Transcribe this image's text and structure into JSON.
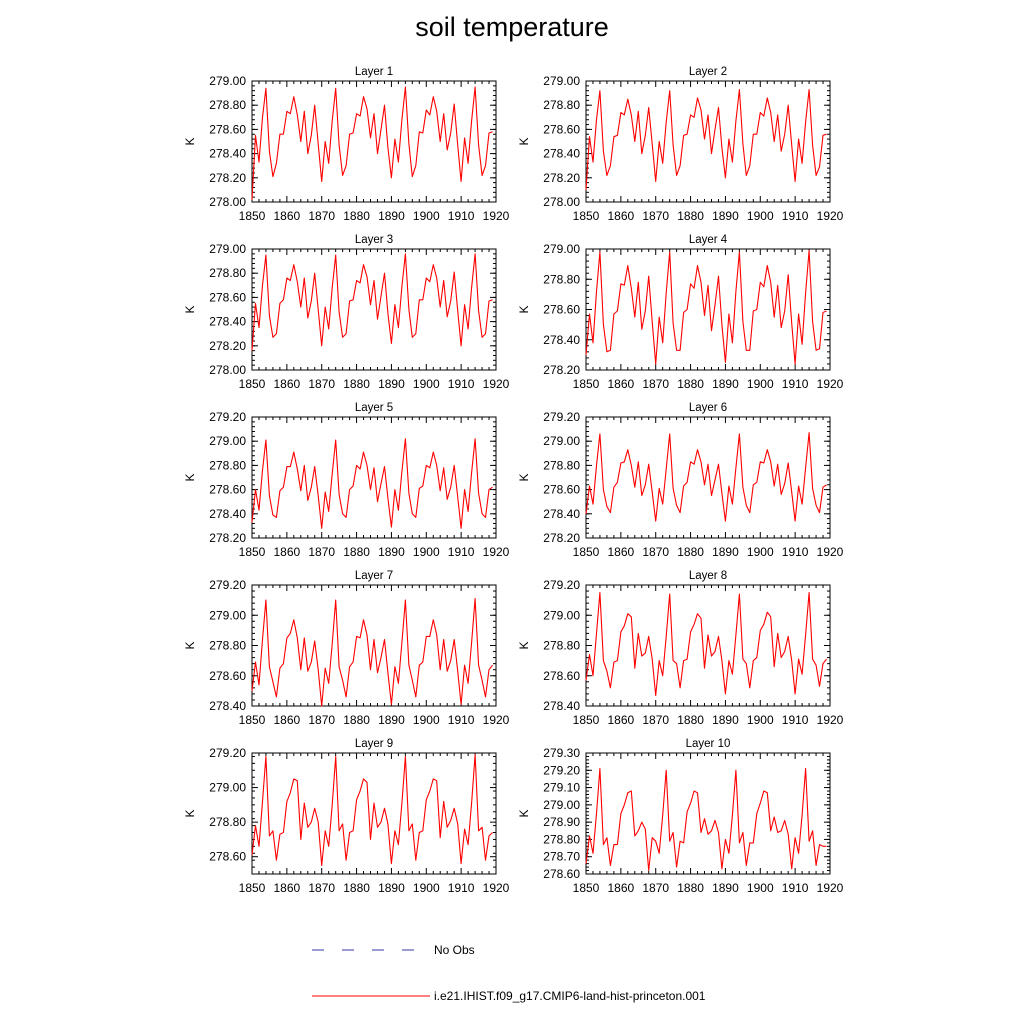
{
  "title": "soil temperature",
  "legend": [
    {
      "label": "No Obs",
      "color": "#3a3aa8",
      "dash": "12,18"
    },
    {
      "label": "i.e21.IHIST.f09_g17.CMIP6-land-hist-princeton.001",
      "color": "#ff0000",
      "dash": ""
    }
  ],
  "colors": {
    "series": "#ff0000",
    "axis": "#000000"
  },
  "chart_data": [
    {
      "type": "line",
      "title": "Layer 1",
      "ylabel": "K",
      "xlim": [
        1850,
        1920
      ],
      "ylim": [
        278.0,
        279.0
      ],
      "xticks": [
        1850,
        1860,
        1870,
        1880,
        1890,
        1900,
        1910,
        1920
      ],
      "yticks": [
        "278.00",
        "278.20",
        "278.40",
        "278.60",
        "278.80",
        "279.00"
      ],
      "x_start": 1850,
      "series": [
        {
          "values": [
            278.02,
            278.55,
            278.33,
            278.7,
            278.94,
            278.42,
            278.21,
            278.32,
            278.56,
            278.56,
            278.75,
            278.73,
            278.87,
            278.72,
            278.5,
            278.75,
            278.4,
            278.55,
            278.8,
            278.48,
            278.17,
            278.5,
            278.32,
            278.67,
            278.94,
            278.47,
            278.22,
            278.3,
            278.56,
            278.57,
            278.73,
            278.71,
            278.87,
            278.77,
            278.53,
            278.73,
            278.4,
            278.6,
            278.8,
            278.45,
            278.2,
            278.52,
            278.33,
            278.68,
            278.95,
            278.48,
            278.21,
            278.3,
            278.58,
            278.57,
            278.76,
            278.72,
            278.87,
            278.75,
            278.5,
            278.73,
            278.43,
            278.57,
            278.81,
            278.47,
            278.17,
            278.53,
            278.32,
            278.67,
            278.95,
            278.47,
            278.22,
            278.3,
            278.57,
            278.58
          ]
        }
      ]
    },
    {
      "type": "line",
      "title": "Layer 2",
      "ylabel": "K",
      "xlim": [
        1850,
        1920
      ],
      "ylim": [
        278.0,
        279.0
      ],
      "xticks": [
        1850,
        1860,
        1870,
        1880,
        1890,
        1900,
        1910,
        1920
      ],
      "yticks": [
        "278.00",
        "278.20",
        "278.40",
        "278.60",
        "278.80",
        "279.00"
      ],
      "x_start": 1850,
      "series": [
        {
          "values": [
            278.1,
            278.54,
            278.33,
            278.68,
            278.92,
            278.42,
            278.22,
            278.3,
            278.54,
            278.55,
            278.74,
            278.72,
            278.85,
            278.72,
            278.5,
            278.75,
            278.4,
            278.55,
            278.78,
            278.48,
            278.17,
            278.5,
            278.32,
            278.66,
            278.92,
            278.47,
            278.22,
            278.3,
            278.55,
            278.56,
            278.72,
            278.7,
            278.86,
            278.76,
            278.52,
            278.72,
            278.4,
            278.6,
            278.78,
            278.45,
            278.2,
            278.52,
            278.33,
            278.67,
            278.93,
            278.48,
            278.22,
            278.3,
            278.56,
            278.56,
            278.74,
            278.71,
            278.86,
            278.74,
            278.5,
            278.72,
            278.42,
            278.56,
            278.8,
            278.47,
            278.17,
            278.52,
            278.32,
            278.66,
            278.93,
            278.47,
            278.22,
            278.29,
            278.55,
            278.56
          ]
        }
      ]
    },
    {
      "type": "line",
      "title": "Layer 3",
      "ylabel": "K",
      "xlim": [
        1850,
        1920
      ],
      "ylim": [
        278.0,
        279.0
      ],
      "xticks": [
        1850,
        1860,
        1870,
        1880,
        1890,
        1900,
        1910,
        1920
      ],
      "yticks": [
        "278.00",
        "278.20",
        "278.40",
        "278.60",
        "278.80",
        "279.00"
      ],
      "x_start": 1850,
      "series": [
        {
          "values": [
            278.16,
            278.55,
            278.35,
            278.7,
            278.95,
            278.45,
            278.27,
            278.3,
            278.55,
            278.58,
            278.76,
            278.74,
            278.87,
            278.73,
            278.52,
            278.76,
            278.43,
            278.57,
            278.8,
            278.5,
            278.2,
            278.52,
            278.34,
            278.68,
            278.95,
            278.48,
            278.27,
            278.3,
            278.57,
            278.58,
            278.74,
            278.72,
            278.87,
            278.77,
            278.54,
            278.74,
            278.42,
            278.61,
            278.8,
            278.47,
            278.22,
            278.54,
            278.35,
            278.69,
            278.96,
            278.5,
            278.27,
            278.3,
            278.58,
            278.58,
            278.76,
            278.73,
            278.87,
            278.76,
            278.52,
            278.74,
            278.44,
            278.57,
            278.81,
            278.49,
            278.2,
            278.54,
            278.34,
            278.68,
            278.96,
            278.49,
            278.27,
            278.3,
            278.57,
            278.58
          ]
        }
      ]
    },
    {
      "type": "line",
      "title": "Layer 4",
      "ylabel": "K",
      "xlim": [
        1850,
        1920
      ],
      "ylim": [
        278.2,
        279.0
      ],
      "xticks": [
        1850,
        1860,
        1870,
        1880,
        1890,
        1900,
        1910,
        1920
      ],
      "yticks": [
        "278.20",
        "278.40",
        "278.60",
        "278.80",
        "279.00"
      ],
      "x_start": 1850,
      "series": [
        {
          "values": [
            278.3,
            278.57,
            278.38,
            278.72,
            278.98,
            278.5,
            278.32,
            278.33,
            278.57,
            278.59,
            278.77,
            278.76,
            278.89,
            278.74,
            278.55,
            278.78,
            278.47,
            278.59,
            278.82,
            278.52,
            278.24,
            278.55,
            278.38,
            278.71,
            278.98,
            278.51,
            278.33,
            278.33,
            278.58,
            278.6,
            278.77,
            278.74,
            278.89,
            278.78,
            278.56,
            278.76,
            278.46,
            278.63,
            278.82,
            278.5,
            278.25,
            278.57,
            278.38,
            278.72,
            278.98,
            278.52,
            278.33,
            278.33,
            278.59,
            278.6,
            278.78,
            278.75,
            278.89,
            278.78,
            278.55,
            278.76,
            278.48,
            278.59,
            278.83,
            278.51,
            278.24,
            278.57,
            278.37,
            278.71,
            278.99,
            278.52,
            278.33,
            278.34,
            278.58,
            278.59
          ]
        }
      ]
    },
    {
      "type": "line",
      "title": "Layer 5",
      "ylabel": "K",
      "xlim": [
        1850,
        1920
      ],
      "ylim": [
        278.2,
        279.2
      ],
      "xticks": [
        1850,
        1860,
        1870,
        1880,
        1890,
        1900,
        1910,
        1920
      ],
      "yticks": [
        "278.20",
        "278.40",
        "278.60",
        "278.80",
        "279.00",
        "279.20"
      ],
      "x_start": 1850,
      "series": [
        {
          "values": [
            278.33,
            278.6,
            278.43,
            278.76,
            279.01,
            278.55,
            278.39,
            278.37,
            278.59,
            278.62,
            278.79,
            278.79,
            278.91,
            278.77,
            278.59,
            278.8,
            278.51,
            278.62,
            278.79,
            278.55,
            278.28,
            278.58,
            278.42,
            278.73,
            279.01,
            278.56,
            278.4,
            278.37,
            278.6,
            278.63,
            278.8,
            278.77,
            278.91,
            278.8,
            278.6,
            278.78,
            278.5,
            278.65,
            278.79,
            278.53,
            278.29,
            278.6,
            278.43,
            278.75,
            279.02,
            278.57,
            278.4,
            278.37,
            278.61,
            278.63,
            278.8,
            278.78,
            278.91,
            278.8,
            278.59,
            278.78,
            278.52,
            278.62,
            278.8,
            278.54,
            278.28,
            278.6,
            278.42,
            278.74,
            279.02,
            278.57,
            278.4,
            278.37,
            278.6,
            278.62
          ]
        }
      ]
    },
    {
      "type": "line",
      "title": "Layer 6",
      "ylabel": "K",
      "xlim": [
        1850,
        1920
      ],
      "ylim": [
        278.2,
        279.2
      ],
      "xticks": [
        1850,
        1860,
        1870,
        1880,
        1890,
        1900,
        1910,
        1920
      ],
      "yticks": [
        "278.20",
        "278.40",
        "278.60",
        "278.80",
        "279.00",
        "279.20"
      ],
      "x_start": 1850,
      "series": [
        {
          "values": [
            278.4,
            278.63,
            278.48,
            278.8,
            279.06,
            278.6,
            278.46,
            278.41,
            278.62,
            278.66,
            278.82,
            278.83,
            278.93,
            278.8,
            278.62,
            278.83,
            278.55,
            278.64,
            278.81,
            278.58,
            278.34,
            278.61,
            278.48,
            278.77,
            279.06,
            278.61,
            278.47,
            278.41,
            278.63,
            278.66,
            278.83,
            278.81,
            278.93,
            278.83,
            278.64,
            278.81,
            278.55,
            278.68,
            278.81,
            278.57,
            278.34,
            278.63,
            278.48,
            278.78,
            279.06,
            278.62,
            278.47,
            278.41,
            278.64,
            278.66,
            278.83,
            278.82,
            278.93,
            278.83,
            278.63,
            278.81,
            278.56,
            278.65,
            278.82,
            278.58,
            278.34,
            278.63,
            278.48,
            278.78,
            279.07,
            278.61,
            278.47,
            278.41,
            278.62,
            278.64
          ]
        }
      ]
    },
    {
      "type": "line",
      "title": "Layer 7",
      "ylabel": "K",
      "xlim": [
        1850,
        1920
      ],
      "ylim": [
        278.4,
        279.2
      ],
      "xticks": [
        1850,
        1860,
        1870,
        1880,
        1890,
        1900,
        1910,
        1920
      ],
      "yticks": [
        "278.40",
        "278.60",
        "278.80",
        "279.00",
        "279.20"
      ],
      "x_start": 1850,
      "series": [
        {
          "values": [
            278.5,
            278.69,
            278.54,
            278.84,
            279.1,
            278.66,
            278.56,
            278.46,
            278.65,
            278.68,
            278.85,
            278.88,
            278.97,
            278.85,
            278.64,
            278.85,
            278.63,
            278.69,
            278.83,
            278.64,
            278.4,
            278.65,
            278.55,
            278.81,
            279.1,
            278.66,
            278.57,
            278.46,
            278.66,
            278.69,
            278.86,
            278.85,
            278.97,
            278.87,
            278.64,
            278.84,
            278.62,
            278.72,
            278.84,
            278.62,
            278.41,
            278.66,
            278.55,
            278.82,
            279.1,
            278.67,
            278.57,
            278.46,
            278.67,
            278.69,
            278.86,
            278.86,
            278.97,
            278.87,
            278.64,
            278.84,
            278.63,
            278.7,
            278.84,
            278.63,
            278.41,
            278.67,
            278.55,
            278.82,
            279.11,
            278.67,
            278.57,
            278.46,
            278.64,
            278.67
          ]
        }
      ]
    },
    {
      "type": "line",
      "title": "Layer 8",
      "ylabel": "K",
      "xlim": [
        1850,
        1920
      ],
      "ylim": [
        278.4,
        279.2
      ],
      "xticks": [
        1850,
        1860,
        1870,
        1880,
        1890,
        1900,
        1910,
        1920
      ],
      "yticks": [
        "278.40",
        "278.60",
        "278.80",
        "279.00",
        "279.20"
      ],
      "x_start": 1850,
      "series": [
        {
          "values": [
            278.57,
            278.74,
            278.6,
            278.88,
            279.15,
            278.7,
            278.63,
            278.52,
            278.69,
            278.7,
            278.89,
            278.93,
            279.01,
            278.99,
            278.65,
            278.88,
            278.73,
            278.75,
            278.86,
            278.71,
            278.47,
            278.7,
            278.6,
            278.86,
            279.14,
            278.7,
            278.68,
            278.52,
            278.7,
            278.71,
            278.89,
            278.94,
            279.01,
            278.98,
            278.65,
            278.87,
            278.73,
            278.76,
            278.86,
            278.7,
            278.48,
            278.7,
            278.61,
            278.87,
            279.14,
            278.71,
            278.68,
            278.52,
            278.7,
            278.72,
            278.9,
            278.94,
            279.02,
            278.99,
            278.66,
            278.88,
            278.72,
            278.76,
            278.86,
            278.7,
            278.48,
            278.71,
            278.61,
            278.87,
            279.15,
            278.71,
            278.67,
            278.53,
            278.68,
            278.71
          ]
        }
      ]
    },
    {
      "type": "line",
      "title": "Layer 9",
      "ylabel": "K",
      "xlim": [
        1850,
        1920
      ],
      "ylim": [
        278.5,
        279.2
      ],
      "xticks": [
        1850,
        1860,
        1870,
        1880,
        1890,
        1900,
        1910,
        1920
      ],
      "yticks": [
        "278.60",
        "278.80",
        "279.00",
        "279.20"
      ],
      "x_start": 1850,
      "series": [
        {
          "values": [
            278.61,
            278.78,
            278.66,
            278.92,
            279.18,
            278.72,
            278.75,
            278.58,
            278.73,
            278.74,
            278.92,
            278.97,
            279.05,
            279.04,
            278.7,
            278.91,
            278.77,
            278.8,
            278.88,
            278.8,
            278.55,
            278.75,
            278.66,
            278.9,
            279.18,
            278.75,
            278.79,
            278.58,
            278.74,
            278.75,
            278.93,
            278.98,
            279.05,
            279.03,
            278.7,
            278.91,
            278.77,
            278.8,
            278.88,
            278.79,
            278.56,
            278.75,
            278.67,
            278.91,
            279.18,
            278.75,
            278.79,
            278.58,
            278.74,
            278.75,
            278.93,
            278.98,
            279.05,
            279.04,
            278.71,
            278.92,
            278.77,
            278.81,
            278.88,
            278.79,
            278.56,
            278.76,
            278.67,
            278.91,
            279.19,
            278.75,
            278.77,
            278.58,
            278.72,
            278.74
          ]
        }
      ]
    },
    {
      "type": "line",
      "title": "Layer 10",
      "ylabel": "K",
      "xlim": [
        1850,
        1920
      ],
      "ylim": [
        278.6,
        279.3
      ],
      "xticks": [
        1850,
        1860,
        1870,
        1880,
        1890,
        1900,
        1910,
        1920
      ],
      "yticks": [
        "278.60",
        "278.70",
        "278.80",
        "278.90",
        "279.00",
        "279.10",
        "279.20",
        "279.30"
      ],
      "x_start": 1850,
      "series": [
        {
          "values": [
            278.66,
            278.82,
            278.72,
            278.95,
            279.21,
            278.77,
            278.81,
            278.65,
            278.77,
            278.77,
            278.95,
            279.0,
            279.07,
            279.08,
            278.82,
            278.85,
            278.9,
            278.86,
            278.62,
            278.81,
            278.79,
            278.72,
            278.94,
            279.2,
            278.79,
            278.84,
            278.64,
            278.79,
            278.78,
            278.96,
            279.01,
            279.08,
            279.07,
            278.84,
            278.92,
            278.83,
            278.85,
            278.91,
            278.84,
            278.63,
            278.8,
            278.72,
            278.94,
            279.2,
            278.78,
            278.84,
            278.65,
            278.78,
            278.78,
            278.95,
            279.01,
            279.08,
            279.07,
            278.85,
            278.93,
            278.84,
            278.85,
            278.91,
            278.83,
            278.63,
            278.81,
            278.72,
            278.94,
            279.21,
            278.79,
            278.85,
            278.65,
            278.77,
            278.76,
            278.76
          ]
        }
      ]
    }
  ]
}
